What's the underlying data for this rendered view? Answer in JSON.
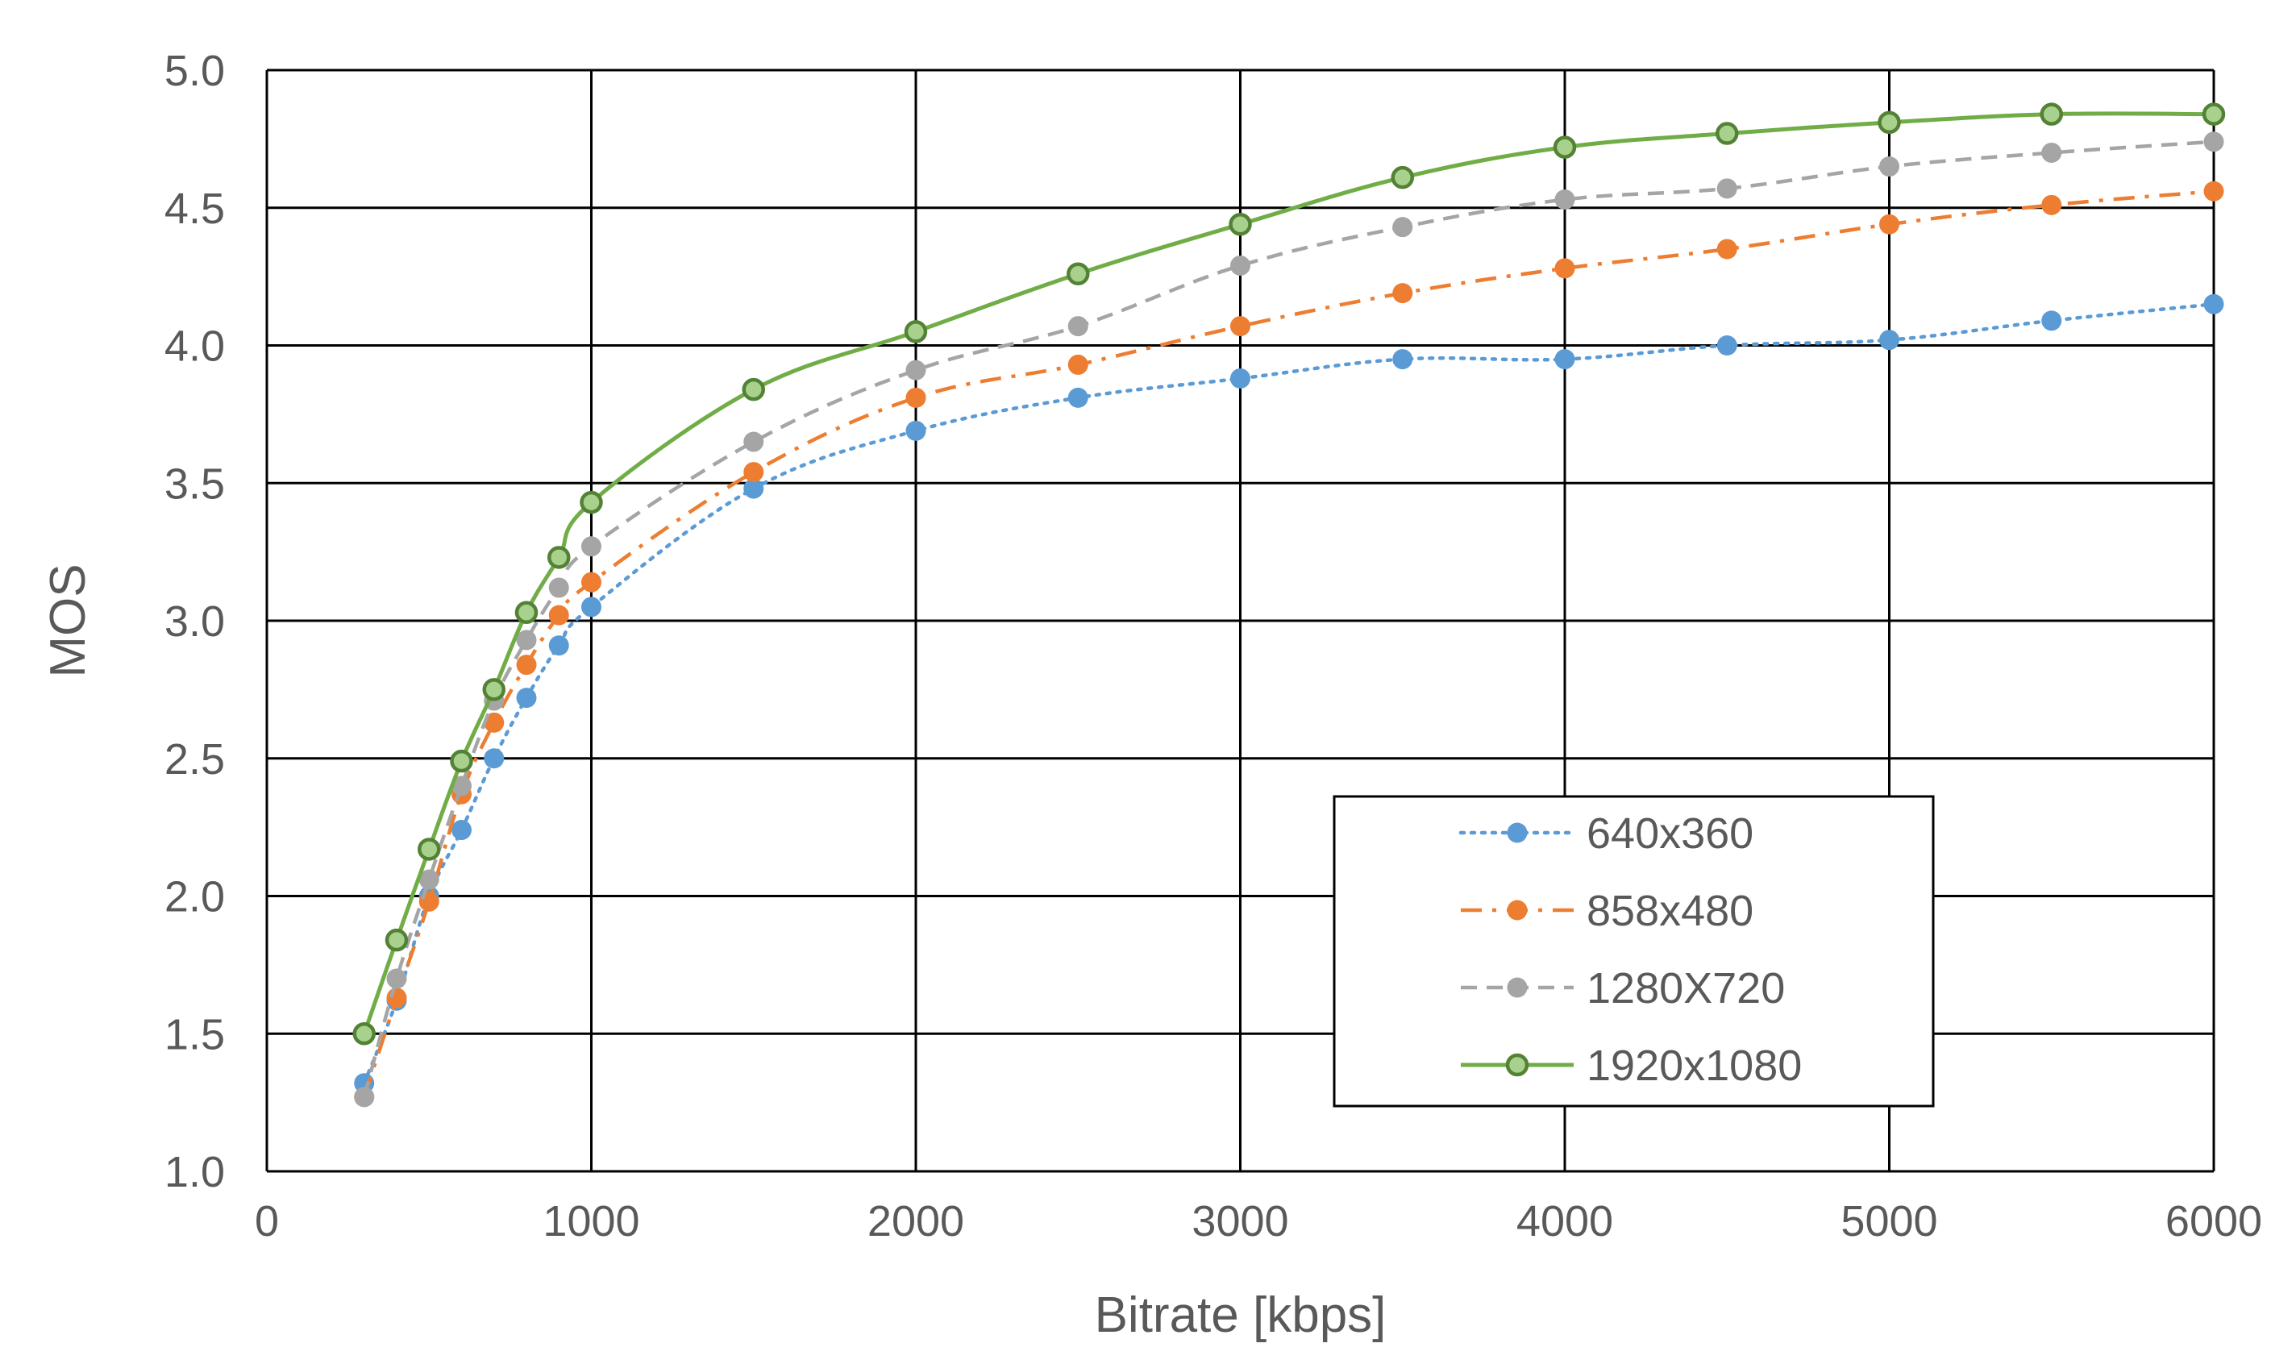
{
  "chart_data": {
    "type": "line",
    "title": "",
    "xlabel": "Bitrate [kbps]",
    "ylabel": "MOS",
    "xlim": [
      0,
      6000
    ],
    "ylim": [
      1.0,
      5.0
    ],
    "xticks": [
      0,
      1000,
      2000,
      3000,
      4000,
      5000,
      6000
    ],
    "xtick_labels": [
      "0",
      "1000",
      "2000",
      "3000",
      "4000",
      "5000",
      "6000"
    ],
    "yticks": [
      1.0,
      1.5,
      2.0,
      2.5,
      3.0,
      3.5,
      4.0,
      4.5,
      5.0
    ],
    "ytick_labels": [
      "1.0",
      "1.5",
      "2.0",
      "2.5",
      "3.0",
      "3.5",
      "4.0",
      "4.5",
      "5.0"
    ],
    "grid": true,
    "legend_position": "bottom-right",
    "x": [
      300,
      400,
      500,
      600,
      700,
      800,
      900,
      1000,
      1500,
      2000,
      2500,
      3000,
      3500,
      4000,
      4500,
      5000,
      5500,
      6000
    ],
    "series": [
      {
        "name": "640x360",
        "color": "#5b9bd5",
        "line_style": "dotted",
        "marker": "filled-circle",
        "values": [
          1.32,
          1.62,
          2.0,
          2.24,
          2.5,
          2.72,
          2.91,
          3.05,
          3.48,
          3.69,
          3.81,
          3.88,
          3.95,
          3.95,
          4.0,
          4.02,
          4.09,
          4.15
        ]
      },
      {
        "name": "858x480",
        "color": "#ed7d31",
        "line_style": "dash-dot",
        "marker": "filled-circle",
        "values": [
          1.27,
          1.63,
          1.98,
          2.37,
          2.63,
          2.84,
          3.02,
          3.14,
          3.54,
          3.81,
          3.93,
          4.07,
          4.19,
          4.28,
          4.35,
          4.44,
          4.51,
          4.56
        ]
      },
      {
        "name": "1280X720",
        "color": "#a5a5a5",
        "line_style": "dashed",
        "marker": "filled-circle",
        "values": [
          1.27,
          1.7,
          2.06,
          2.4,
          2.71,
          2.93,
          3.12,
          3.27,
          3.65,
          3.91,
          4.07,
          4.29,
          4.43,
          4.53,
          4.57,
          4.65,
          4.7,
          4.74
        ]
      },
      {
        "name": "1920x1080",
        "color": "#70ad47",
        "line_style": "solid",
        "marker": "open-circle",
        "values": [
          1.5,
          1.84,
          2.17,
          2.49,
          2.75,
          3.03,
          3.23,
          3.43,
          3.84,
          4.05,
          4.26,
          4.44,
          4.61,
          4.72,
          4.77,
          4.81,
          4.84,
          4.84
        ]
      }
    ]
  }
}
